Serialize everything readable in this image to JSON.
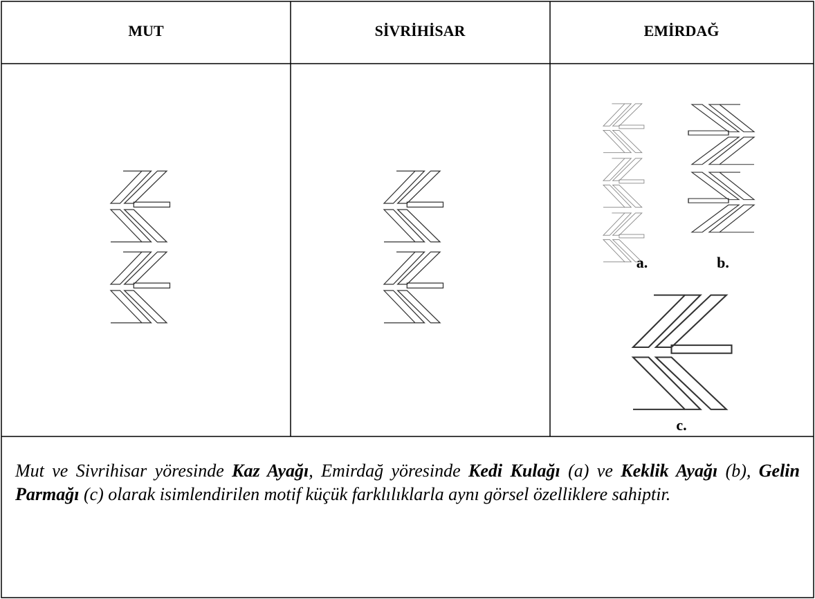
{
  "table": {
    "headers": [
      "MUT",
      "SİVRİHİSAR",
      "EMİRDAĞ"
    ],
    "motif_labels": [
      "a.",
      "b.",
      "c."
    ]
  },
  "caption": {
    "segments": [
      "Mut ve Sivrihisar yöresinde ",
      "Kaz Ayağı",
      ", Emirdağ yöresinde ",
      "Kedi Kulağı",
      " (a) ve ",
      "Keklik Ayağı",
      " (b), ",
      "Gelin Parmağı",
      " (c) olarak isimlendirilen motif küçük farklılıklarla aynı görsel özelliklere sahiptir."
    ]
  }
}
